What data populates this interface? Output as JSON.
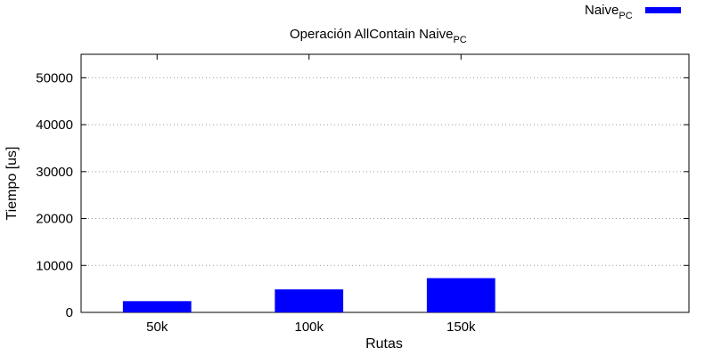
{
  "chart_data": {
    "type": "bar",
    "title": "Operación AllContain Naive",
    "title_subscript": "PC",
    "xlabel": "Rutas",
    "ylabel": "Tiempo [us]",
    "categories": [
      "50k",
      "100k",
      "150k"
    ],
    "series": [
      {
        "name": "Naive",
        "name_subscript": "PC",
        "color": "#0000ff",
        "values": [
          2400,
          4900,
          7300
        ]
      }
    ],
    "ylim": [
      0,
      55000
    ],
    "yticks": [
      0,
      10000,
      20000,
      30000,
      40000,
      50000
    ],
    "ytick_labels": [
      "0",
      "10000",
      "20000",
      "30000",
      "40000",
      "50000"
    ],
    "grid": true,
    "legend_position": "top-right"
  }
}
